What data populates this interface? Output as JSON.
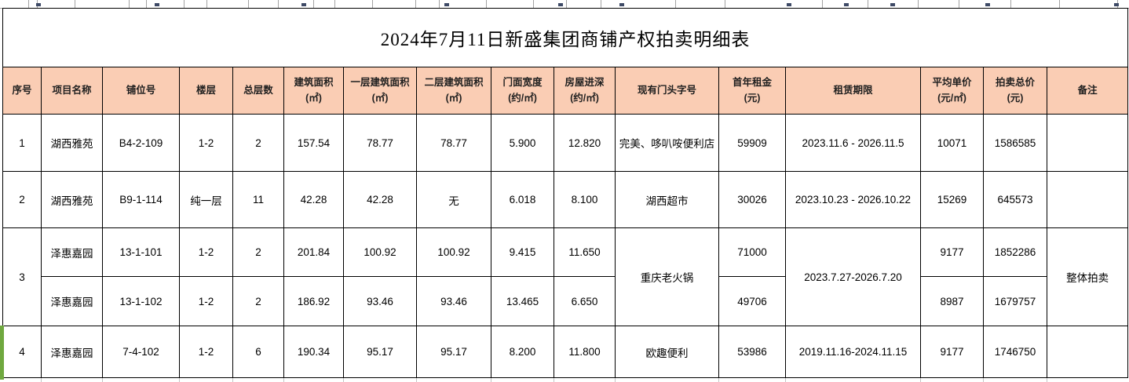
{
  "title": "2024年7月11日新盛集团商铺产权拍卖明细表",
  "colors": {
    "header_fill": "#FACDB4",
    "sheet_edge_green": "#6FA83F",
    "grid_line": "#000000"
  },
  "table": {
    "headers": [
      {
        "label": "序号",
        "unit": ""
      },
      {
        "label": "项目名称",
        "unit": ""
      },
      {
        "label": "铺位号",
        "unit": ""
      },
      {
        "label": "楼层",
        "unit": ""
      },
      {
        "label": "总层数",
        "unit": ""
      },
      {
        "label": "建筑面积",
        "unit": "(㎡)"
      },
      {
        "label": "一层建筑面积",
        "unit": "(㎡)"
      },
      {
        "label": "二层建筑面积",
        "unit": "(㎡)"
      },
      {
        "label": "门面宽度",
        "unit": "(约/㎡)"
      },
      {
        "label": "房屋进深",
        "unit": "(约/㎡)"
      },
      {
        "label": "现有门头字号",
        "unit": ""
      },
      {
        "label": "首年租金",
        "unit": "(元)"
      },
      {
        "label": "租赁期限",
        "unit": ""
      },
      {
        "label": "平均单价",
        "unit": "(元/㎡)"
      },
      {
        "label": "拍卖总价",
        "unit": "(元)"
      },
      {
        "label": "备注",
        "unit": ""
      }
    ],
    "rows": [
      {
        "seq": "1",
        "project": "湖西雅苑",
        "unit_no": "B4-2-109",
        "floor": "1-2",
        "total_floors": "2",
        "area": "157.54",
        "area_f1": "78.77",
        "area_f2": "78.77",
        "width": "5.900",
        "depth": "12.820",
        "tenant": "完美、哆叭咹便利店",
        "rent": "59909",
        "lease": "2023.11.6 - 2026.11.5",
        "avg_price": "10071",
        "total_price": "1586585",
        "note": ""
      },
      {
        "seq": "2",
        "project": "湖西雅苑",
        "unit_no": "B9-1-114",
        "floor": "纯一层",
        "total_floors": "11",
        "area": "42.28",
        "area_f1": "42.28",
        "area_f2": "无",
        "width": "6.018",
        "depth": "8.100",
        "tenant": "湖西超市",
        "rent": "30026",
        "lease": "2023.10.23 - 2026.10.22",
        "avg_price": "15269",
        "total_price": "645573",
        "note": ""
      },
      {
        "seq": "3",
        "project": "泽惠嘉园",
        "unit_no": "13-1-101",
        "floor": "1-2",
        "total_floors": "2",
        "area": "201.84",
        "area_f1": "100.92",
        "area_f2": "100.92",
        "width": "9.415",
        "depth": "11.650",
        "tenant": "重庆老火锅",
        "rent": "71000",
        "lease": "2023.7.27-2026.7.20",
        "avg_price": "9177",
        "total_price": "1852286",
        "note": "整体拍卖"
      },
      {
        "project": "泽惠嘉园",
        "unit_no": "13-1-102",
        "floor": "1-2",
        "total_floors": "2",
        "area": "186.92",
        "area_f1": "93.46",
        "area_f2": "93.46",
        "width": "13.465",
        "depth": "6.650",
        "rent": "49706",
        "avg_price": "8987",
        "total_price": "1679757"
      },
      {
        "seq": "4",
        "project": "泽惠嘉园",
        "unit_no": "7-4-102",
        "floor": "1-2",
        "total_floors": "6",
        "area": "190.34",
        "area_f1": "95.17",
        "area_f2": "95.17",
        "width": "8.200",
        "depth": "11.800",
        "tenant": "欧趣便利",
        "rent": "53986",
        "lease": "2019.11.16-2024.11.15",
        "avg_price": "9177",
        "total_price": "1746750",
        "note": ""
      }
    ]
  }
}
